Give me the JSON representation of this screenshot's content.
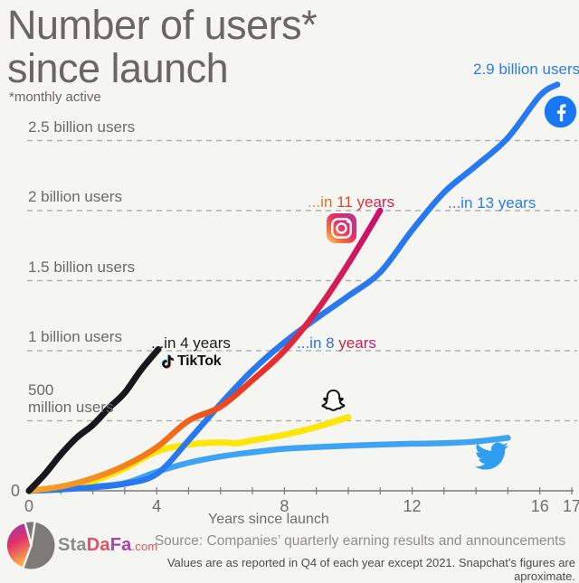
{
  "title": {
    "line1": "Number of users*",
    "line2": "since launch",
    "footnote": "*monthly active"
  },
  "chart_data": {
    "type": "line",
    "xlabel": "Years since launch",
    "x_axis": {
      "min": 0,
      "max": 17,
      "ticks": [
        {
          "year": 0,
          "label": "0"
        },
        {
          "year": 4,
          "label": "4"
        },
        {
          "year": 8,
          "label": "8"
        },
        {
          "year": 12,
          "label": "12"
        },
        {
          "year": 16,
          "label": "16"
        },
        {
          "year": 17,
          "label": "17"
        }
      ]
    },
    "y_axis": {
      "unit": "millions of users",
      "min": 0,
      "max": 2900,
      "zero_label": "0",
      "grid": "dashed"
    },
    "gridlines": [
      {
        "value_millions": 2500,
        "label": "2.5 billion users"
      },
      {
        "value_millions": 2000,
        "label": "2 billion users"
      },
      {
        "value_millions": 1500,
        "label": "1.5 billion users"
      },
      {
        "value_millions": 1000,
        "label": "1 billion users"
      },
      {
        "value_millions": 500,
        "label": "500\nmillion users"
      }
    ],
    "series": [
      {
        "name": "twitter",
        "color": "#3fa3f3",
        "width": 6.5,
        "points": [
          [
            0,
            0
          ],
          [
            1,
            10
          ],
          [
            2,
            30
          ],
          [
            3,
            55
          ],
          [
            4,
            135
          ],
          [
            5,
            200
          ],
          [
            6,
            245
          ],
          [
            7,
            275
          ],
          [
            8,
            300
          ],
          [
            9,
            312
          ],
          [
            10,
            322
          ],
          [
            11,
            330
          ],
          [
            12,
            336
          ],
          [
            13,
            340
          ],
          [
            14,
            352
          ],
          [
            15,
            378
          ]
        ]
      },
      {
        "name": "snapchat",
        "color": "#ffe60a",
        "width": 7,
        "points": [
          [
            0,
            0
          ],
          [
            1,
            20
          ],
          [
            2,
            70
          ],
          [
            3,
            160
          ],
          [
            4,
            280
          ],
          [
            5,
            330
          ],
          [
            6,
            345
          ],
          [
            6.5,
            340
          ],
          [
            7,
            360
          ],
          [
            8,
            400
          ],
          [
            9,
            455
          ],
          [
            10,
            525
          ]
        ]
      },
      {
        "name": "facebook",
        "color": "#2878f0",
        "width": 6.5,
        "points": [
          [
            0,
            0
          ],
          [
            1,
            10
          ],
          [
            2,
            25
          ],
          [
            3,
            50
          ],
          [
            4,
            120
          ],
          [
            5,
            360
          ],
          [
            6,
            620
          ],
          [
            7,
            860
          ],
          [
            8,
            1060
          ],
          [
            9,
            1230
          ],
          [
            10,
            1390
          ],
          [
            11,
            1560
          ],
          [
            12,
            1860
          ],
          [
            13,
            2130
          ],
          [
            14,
            2320
          ],
          [
            15,
            2520
          ],
          [
            16,
            2820
          ],
          [
            16.55,
            2900
          ]
        ]
      },
      {
        "name": "instagram",
        "width": 6.5,
        "gradient_stops": [
          [
            "0%",
            "#f7a328"
          ],
          [
            "30%",
            "#f07218"
          ],
          [
            "55%",
            "#e93423"
          ],
          [
            "78%",
            "#d61f53"
          ],
          [
            "100%",
            "#c9106e"
          ]
        ],
        "points": [
          [
            0,
            0
          ],
          [
            1,
            30
          ],
          [
            2,
            90
          ],
          [
            3,
            180
          ],
          [
            4,
            310
          ],
          [
            5,
            500
          ],
          [
            6,
            600
          ],
          [
            7,
            790
          ],
          [
            8,
            1000
          ],
          [
            9,
            1280
          ],
          [
            10,
            1620
          ],
          [
            11,
            2000
          ]
        ]
      },
      {
        "name": "tiktok",
        "color": "#17171c",
        "width": 7,
        "points": [
          [
            0,
            0
          ],
          [
            0.5,
            120
          ],
          [
            1,
            260
          ],
          [
            1.5,
            380
          ],
          [
            2,
            470
          ],
          [
            2.5,
            590
          ],
          [
            3,
            700
          ],
          [
            3.5,
            860
          ],
          [
            4.05,
            1010
          ]
        ]
      }
    ],
    "annotations": {
      "facebook_peak": "2.9 billion users",
      "facebook_2b": "...in 13 years",
      "instagram_2b": "...in 11 years",
      "one_billion": "...in 8 years",
      "tiktok_1b": "...in 4 years",
      "tiktok_wordmark": "TikTok"
    }
  },
  "colors": {
    "facebook": "#1877F2",
    "twitter": "#3fa3f3",
    "tiktok": "#121212",
    "snapchat": "#ffe60a",
    "instagram_start": "#f7a328",
    "instagram_end": "#c9106e",
    "annotation_blue": "#2b7de9",
    "background": "#f5f5f2"
  },
  "footer": {
    "brand": {
      "part1": "Sta",
      "part2": "Da",
      "part3": "Fa",
      "tld": ".com"
    },
    "source": "Source: Companies’ quarterly earning results  and announcements",
    "fine_print": "Values are as reported in Q4 of each year except 2021. Snapchat’s figures are aproximate."
  }
}
